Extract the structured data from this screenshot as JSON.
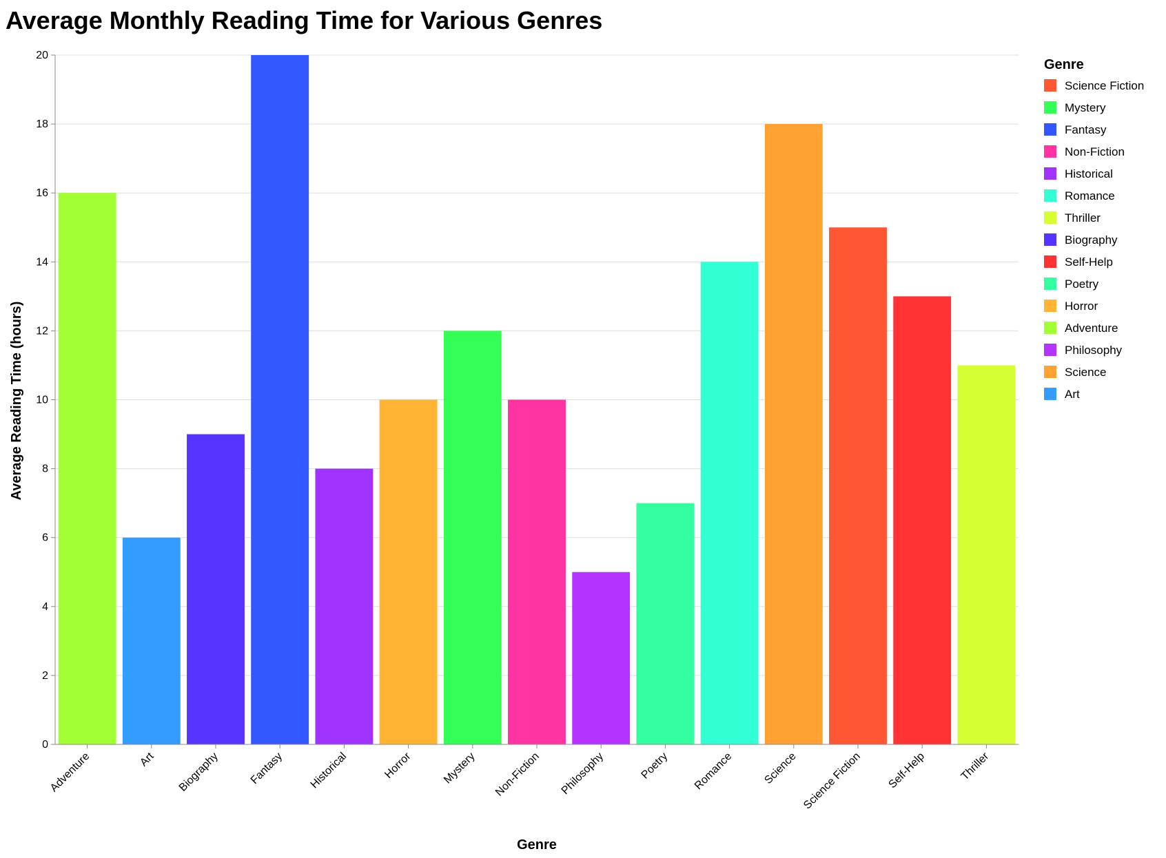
{
  "chart_data": {
    "type": "bar",
    "title": "Average Monthly Reading Time for Various Genres",
    "xlabel": "Genre",
    "ylabel": "Average Reading Time (hours)",
    "ylim": [
      0,
      20
    ],
    "yticks": [
      0,
      2,
      4,
      6,
      8,
      10,
      12,
      14,
      16,
      18,
      20
    ],
    "grid": true,
    "legend_position": "right",
    "legend_title": "Genre",
    "categories": [
      "Adventure",
      "Art",
      "Biography",
      "Fantasy",
      "Historical",
      "Horror",
      "Mystery",
      "Non-Fiction",
      "Philosophy",
      "Poetry",
      "Romance",
      "Science",
      "Science Fiction",
      "Self-Help",
      "Thriller"
    ],
    "values": [
      16,
      6,
      9,
      20,
      8,
      10,
      12,
      10,
      5,
      7,
      14,
      18,
      15,
      13,
      11
    ],
    "colors": {
      "Science Fiction": "#ff5733",
      "Mystery": "#33ff57",
      "Fantasy": "#3357ff",
      "Non-Fiction": "#ff33a1",
      "Historical": "#a133ff",
      "Romance": "#33ffd5",
      "Thriller": "#d5ff33",
      "Biography": "#5733ff",
      "Self-Help": "#ff3333",
      "Poetry": "#33ffa1",
      "Horror": "#ffb533",
      "Adventure": "#a1ff33",
      "Philosophy": "#b533ff",
      "Science": "#ffa133",
      "Art": "#339cff"
    },
    "legend_order": [
      "Science Fiction",
      "Mystery",
      "Fantasy",
      "Non-Fiction",
      "Historical",
      "Romance",
      "Thriller",
      "Biography",
      "Self-Help",
      "Poetry",
      "Horror",
      "Adventure",
      "Philosophy",
      "Science",
      "Art"
    ]
  }
}
